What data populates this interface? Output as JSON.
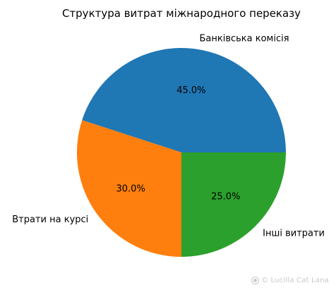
{
  "chart_data": {
    "type": "pie",
    "title": "Структура витрат міжнародного переказу",
    "start_angle_deg": 0,
    "direction": "counterclockwise",
    "slices": [
      {
        "label": "Банківська комісія",
        "value": 45.0,
        "pct_label": "45.0%",
        "color": "#1f77b4"
      },
      {
        "label": "Втрати на курсі",
        "value": 30.0,
        "pct_label": "30.0%",
        "color": "#ff7f0e"
      },
      {
        "label": "Інші витрати",
        "value": 25.0,
        "pct_label": "25.0%",
        "color": "#2ca02c"
      }
    ]
  },
  "watermark": {
    "text": "© Lucilla Cat Lana",
    "icon": "brand-mark-icon"
  }
}
